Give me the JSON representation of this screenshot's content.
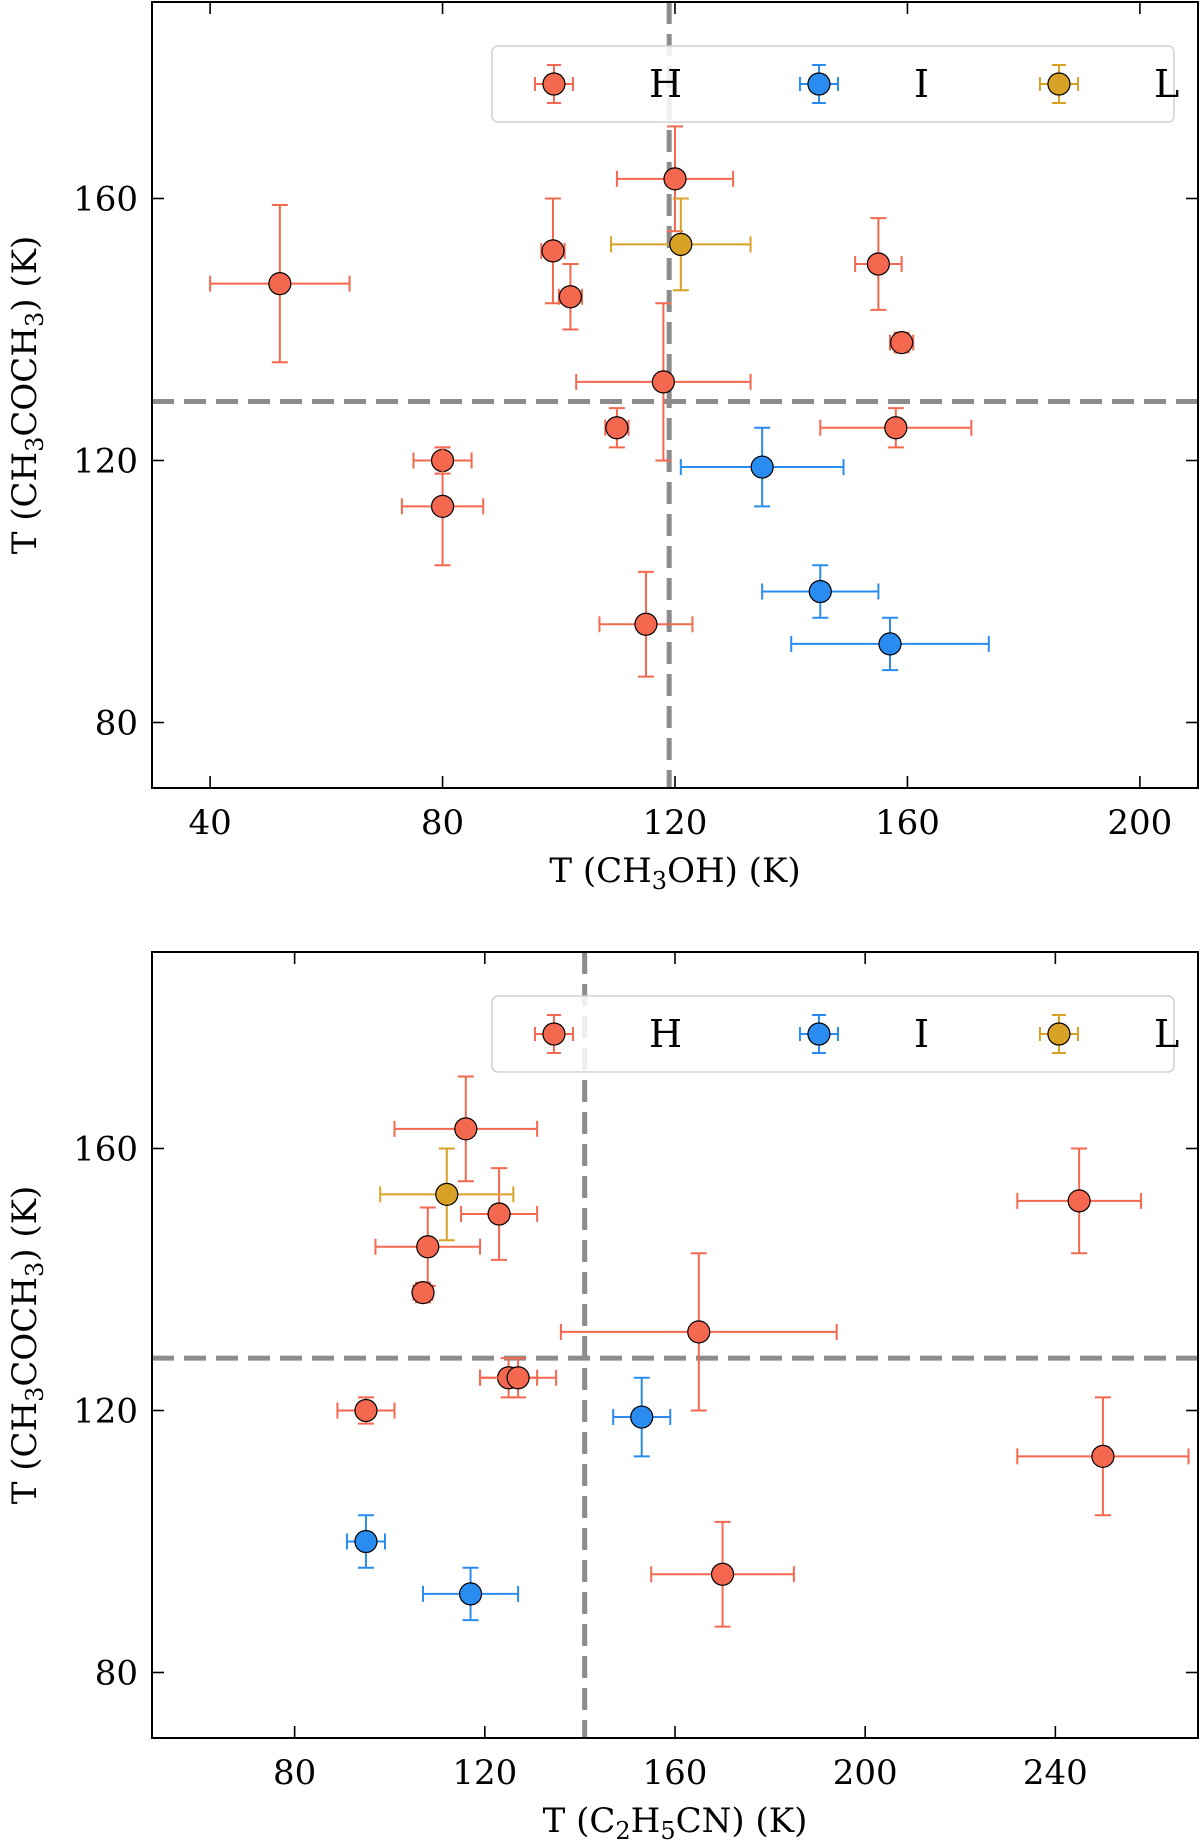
{
  "chart_data": [
    {
      "type": "scatter",
      "xlabel": "T (CH3OH) (K)",
      "xlabel_parts": [
        "T (CH",
        "3",
        "OH) (K)"
      ],
      "ylabel": "T (CH3COCH3) (K)",
      "ylabel_parts": [
        "T (CH",
        "3",
        "COCH",
        "3",
        ") (K)"
      ],
      "xlim": [
        30,
        210
      ],
      "ylim": [
        70,
        190
      ],
      "xticks": [
        40,
        80,
        120,
        160,
        200
      ],
      "yticks": [
        80,
        120,
        160
      ],
      "ref_lines": {
        "x": 119,
        "y": 129
      },
      "legend": [
        "H",
        "I",
        "L"
      ],
      "legend_position": "top-right",
      "colors": {
        "H": "#f4684f",
        "I": "#2a8cf0",
        "L": "#d8a227",
        "ref": "#8c8c8c"
      },
      "series": [
        {
          "name": "H",
          "points": [
            {
              "x": 52,
              "y": 147,
              "xerr": 12,
              "yerr": 12
            },
            {
              "x": 120,
              "y": 163,
              "xerr": 10,
              "yerr": 8
            },
            {
              "x": 99,
              "y": 152,
              "xerr": 2,
              "yerr": 8
            },
            {
              "x": 102,
              "y": 145,
              "xerr": 2,
              "yerr": 5
            },
            {
              "x": 155,
              "y": 150,
              "xerr": 4,
              "yerr": 7
            },
            {
              "x": 159,
              "y": 138,
              "xerr": 2,
              "yerr": 1.5
            },
            {
              "x": 118,
              "y": 132,
              "xerr": 15,
              "yerr": 12
            },
            {
              "x": 110,
              "y": 125,
              "xerr": 2,
              "yerr": 3
            },
            {
              "x": 158,
              "y": 125,
              "xerr": 13,
              "yerr": 3
            },
            {
              "x": 80,
              "y": 120,
              "xerr": 5,
              "yerr": 2
            },
            {
              "x": 80,
              "y": 113,
              "xerr": 7,
              "yerr": 9
            },
            {
              "x": 115,
              "y": 95,
              "xerr": 8,
              "yerr": 8
            }
          ]
        },
        {
          "name": "I",
          "points": [
            {
              "x": 135,
              "y": 119,
              "xerr": 14,
              "yerr": 6
            },
            {
              "x": 145,
              "y": 100,
              "xerr": 10,
              "yerr": 4
            },
            {
              "x": 157,
              "y": 92,
              "xerr": 17,
              "yerr": 4
            }
          ]
        },
        {
          "name": "L",
          "points": [
            {
              "x": 121,
              "y": 153,
              "xerr": 12,
              "yerr": 7
            }
          ]
        }
      ]
    },
    {
      "type": "scatter",
      "xlabel": "T (C2H5CN) (K)",
      "xlabel_parts": [
        "T (C",
        "2",
        "H",
        "5",
        "CN) (K)"
      ],
      "ylabel": "T (CH3COCH3) (K)",
      "ylabel_parts": [
        "T (CH",
        "3",
        "COCH",
        "3",
        ") (K)"
      ],
      "xlim": [
        50,
        270
      ],
      "ylim": [
        70,
        190
      ],
      "xticks": [
        80,
        120,
        160,
        200,
        240
      ],
      "yticks": [
        80,
        120,
        160
      ],
      "ref_lines": {
        "x": 141,
        "y": 128
      },
      "legend": [
        "H",
        "I",
        "L"
      ],
      "legend_position": "top-right",
      "colors": {
        "H": "#f4684f",
        "I": "#2a8cf0",
        "L": "#d8a227",
        "ref": "#8c8c8c"
      },
      "series": [
        {
          "name": "H",
          "points": [
            {
              "x": 116,
              "y": 163,
              "xerr": 15,
              "yerr": 8
            },
            {
              "x": 123,
              "y": 150,
              "xerr": 8,
              "yerr": 7
            },
            {
              "x": 108,
              "y": 145,
              "xerr": 11,
              "yerr": 6
            },
            {
              "x": 107,
              "y": 138,
              "xerr": 2,
              "yerr": 1.5
            },
            {
              "x": 165,
              "y": 132,
              "xerr": 29,
              "yerr": 12
            },
            {
              "x": 125,
              "y": 125,
              "xerr": 6,
              "yerr": 3
            },
            {
              "x": 127,
              "y": 125,
              "xerr": 8,
              "yerr": 3
            },
            {
              "x": 95,
              "y": 120,
              "xerr": 6,
              "yerr": 2
            },
            {
              "x": 245,
              "y": 152,
              "xerr": 13,
              "yerr": 8
            },
            {
              "x": 250,
              "y": 113,
              "xerr": 18,
              "yerr": 9
            },
            {
              "x": 170,
              "y": 95,
              "xerr": 15,
              "yerr": 8
            }
          ]
        },
        {
          "name": "I",
          "points": [
            {
              "x": 153,
              "y": 119,
              "xerr": 6,
              "yerr": 6
            },
            {
              "x": 95,
              "y": 100,
              "xerr": 4,
              "yerr": 4
            },
            {
              "x": 117,
              "y": 92,
              "xerr": 10,
              "yerr": 4
            }
          ]
        },
        {
          "name": "L",
          "points": [
            {
              "x": 112,
              "y": 153,
              "xerr": 14,
              "yerr": 7
            }
          ]
        }
      ]
    }
  ]
}
